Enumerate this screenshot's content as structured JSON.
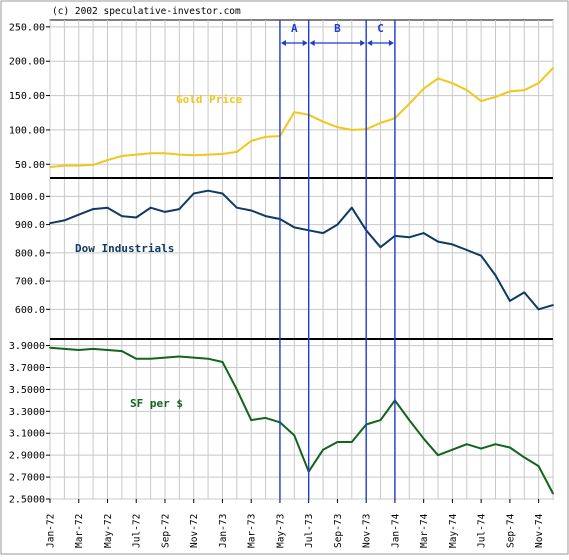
{
  "chart_data": {
    "type": "line",
    "copyright": "(c) 2002 speculative-investor.com",
    "colors": {
      "gold": "#f2c61c",
      "dow": "#0e3a63",
      "sf": "#13651d",
      "grid": "#c8c8c8",
      "divider": "#000000",
      "marker": "#1f3bd1",
      "gold_label": "#f2c61c",
      "dow_label": "#0e3a63",
      "sf_label": "#13651d"
    },
    "x_tick_labels": [
      "Jan-72",
      "Mar-72",
      "May-72",
      "Jul-72",
      "Sep-72",
      "Nov-72",
      "Jan-73",
      "Mar-73",
      "May-73",
      "Jul-73",
      "Sep-73",
      "Nov-73",
      "Jan-74",
      "Mar-74",
      "May-74",
      "Jul-74",
      "Sep-74",
      "Nov-74"
    ],
    "x_range_months": [
      "Jan-72",
      "Dec-74"
    ],
    "grid": true,
    "zones": [
      {
        "label": "A",
        "start": "May-73",
        "end": "Jul-73"
      },
      {
        "label": "B",
        "start": "Jul-73",
        "end": "Nov-73"
      },
      {
        "label": "C",
        "start": "Nov-73",
        "end": "Jan-74"
      }
    ],
    "panels": [
      {
        "key": "gold",
        "label": "Gold Price",
        "y_ticks": [
          "50.00",
          "100.00",
          "150.00",
          "200.00",
          "250.00"
        ],
        "ylim": [
          30,
          260
        ],
        "series": [
          {
            "x": "1972-01",
            "y": 46
          },
          {
            "x": "1972-02",
            "y": 48
          },
          {
            "x": "1972-03",
            "y": 48
          },
          {
            "x": "1972-04",
            "y": 49
          },
          {
            "x": "1972-05",
            "y": 56
          },
          {
            "x": "1972-06",
            "y": 62
          },
          {
            "x": "1972-07",
            "y": 64
          },
          {
            "x": "1972-08",
            "y": 66
          },
          {
            "x": "1972-09",
            "y": 66
          },
          {
            "x": "1972-10",
            "y": 64
          },
          {
            "x": "1972-11",
            "y": 63
          },
          {
            "x": "1972-12",
            "y": 64
          },
          {
            "x": "1973-01",
            "y": 65
          },
          {
            "x": "1973-02",
            "y": 68
          },
          {
            "x": "1973-03",
            "y": 84
          },
          {
            "x": "1973-04",
            "y": 90
          },
          {
            "x": "1973-05",
            "y": 91
          },
          {
            "x": "1973-06",
            "y": 126
          },
          {
            "x": "1973-07",
            "y": 122
          },
          {
            "x": "1973-08",
            "y": 112
          },
          {
            "x": "1973-09",
            "y": 104
          },
          {
            "x": "1973-10",
            "y": 100
          },
          {
            "x": "1973-11",
            "y": 101
          },
          {
            "x": "1973-12",
            "y": 110
          },
          {
            "x": "1974-01",
            "y": 117
          },
          {
            "x": "1974-02",
            "y": 138
          },
          {
            "x": "1974-03",
            "y": 160
          },
          {
            "x": "1974-04",
            "y": 175
          },
          {
            "x": "1974-05",
            "y": 168
          },
          {
            "x": "1974-06",
            "y": 158
          },
          {
            "x": "1974-07",
            "y": 142
          },
          {
            "x": "1974-08",
            "y": 148
          },
          {
            "x": "1974-09",
            "y": 156
          },
          {
            "x": "1974-10",
            "y": 158
          },
          {
            "x": "1974-11",
            "y": 168
          },
          {
            "x": "1974-12",
            "y": 190
          }
        ]
      },
      {
        "key": "dow",
        "label": "Dow Industrials",
        "y_ticks": [
          "600.0",
          "700.0",
          "800.0",
          "900.0",
          "1000.0"
        ],
        "ylim": [
          495,
          1065
        ],
        "series": [
          {
            "x": "1972-01",
            "y": 905
          },
          {
            "x": "1972-02",
            "y": 915
          },
          {
            "x": "1972-03",
            "y": 935
          },
          {
            "x": "1972-04",
            "y": 955
          },
          {
            "x": "1972-05",
            "y": 960
          },
          {
            "x": "1972-06",
            "y": 930
          },
          {
            "x": "1972-07",
            "y": 925
          },
          {
            "x": "1972-08",
            "y": 960
          },
          {
            "x": "1972-09",
            "y": 945
          },
          {
            "x": "1972-10",
            "y": 955
          },
          {
            "x": "1972-11",
            "y": 1010
          },
          {
            "x": "1972-12",
            "y": 1020
          },
          {
            "x": "1973-01",
            "y": 1010
          },
          {
            "x": "1973-02",
            "y": 960
          },
          {
            "x": "1973-03",
            "y": 950
          },
          {
            "x": "1973-04",
            "y": 930
          },
          {
            "x": "1973-05",
            "y": 920
          },
          {
            "x": "1973-06",
            "y": 890
          },
          {
            "x": "1973-07",
            "y": 880
          },
          {
            "x": "1973-08",
            "y": 870
          },
          {
            "x": "1973-09",
            "y": 900
          },
          {
            "x": "1973-10",
            "y": 960
          },
          {
            "x": "1973-11",
            "y": 880
          },
          {
            "x": "1973-12",
            "y": 820
          },
          {
            "x": "1974-01",
            "y": 860
          },
          {
            "x": "1974-02",
            "y": 855
          },
          {
            "x": "1974-03",
            "y": 870
          },
          {
            "x": "1974-04",
            "y": 840
          },
          {
            "x": "1974-05",
            "y": 830
          },
          {
            "x": "1974-06",
            "y": 810
          },
          {
            "x": "1974-07",
            "y": 790
          },
          {
            "x": "1974-08",
            "y": 720
          },
          {
            "x": "1974-09",
            "y": 630
          },
          {
            "x": "1974-10",
            "y": 660
          },
          {
            "x": "1974-11",
            "y": 600
          },
          {
            "x": "1974-12",
            "y": 615
          }
        ]
      },
      {
        "key": "sf",
        "label": "SF per $",
        "y_ticks": [
          "2.5000",
          "2.7000",
          "2.9000",
          "3.1000",
          "3.3000",
          "3.5000",
          "3.7000",
          "3.9000"
        ],
        "ylim": [
          2.5,
          3.96
        ],
        "series": [
          {
            "x": "1972-01",
            "y": 3.88
          },
          {
            "x": "1972-02",
            "y": 3.87
          },
          {
            "x": "1972-03",
            "y": 3.86
          },
          {
            "x": "1972-04",
            "y": 3.87
          },
          {
            "x": "1972-05",
            "y": 3.86
          },
          {
            "x": "1972-06",
            "y": 3.85
          },
          {
            "x": "1972-07",
            "y": 3.78
          },
          {
            "x": "1972-08",
            "y": 3.78
          },
          {
            "x": "1972-09",
            "y": 3.79
          },
          {
            "x": "1972-10",
            "y": 3.8
          },
          {
            "x": "1972-11",
            "y": 3.79
          },
          {
            "x": "1972-12",
            "y": 3.78
          },
          {
            "x": "1973-01",
            "y": 3.75
          },
          {
            "x": "1973-02",
            "y": 3.5
          },
          {
            "x": "1973-03",
            "y": 3.22
          },
          {
            "x": "1973-04",
            "y": 3.24
          },
          {
            "x": "1973-05",
            "y": 3.2
          },
          {
            "x": "1973-06",
            "y": 3.08
          },
          {
            "x": "1973-07",
            "y": 2.75
          },
          {
            "x": "1973-08",
            "y": 2.95
          },
          {
            "x": "1973-09",
            "y": 3.02
          },
          {
            "x": "1973-10",
            "y": 3.02
          },
          {
            "x": "1973-11",
            "y": 3.18
          },
          {
            "x": "1973-12",
            "y": 3.22
          },
          {
            "x": "1974-01",
            "y": 3.4
          },
          {
            "x": "1974-02",
            "y": 3.22
          },
          {
            "x": "1974-03",
            "y": 3.05
          },
          {
            "x": "1974-04",
            "y": 2.9
          },
          {
            "x": "1974-05",
            "y": 2.95
          },
          {
            "x": "1974-06",
            "y": 3.0
          },
          {
            "x": "1974-07",
            "y": 2.96
          },
          {
            "x": "1974-08",
            "y": 3.0
          },
          {
            "x": "1974-09",
            "y": 2.97
          },
          {
            "x": "1974-10",
            "y": 2.88
          },
          {
            "x": "1974-11",
            "y": 2.8
          },
          {
            "x": "1974-12",
            "y": 2.55
          }
        ]
      }
    ]
  }
}
